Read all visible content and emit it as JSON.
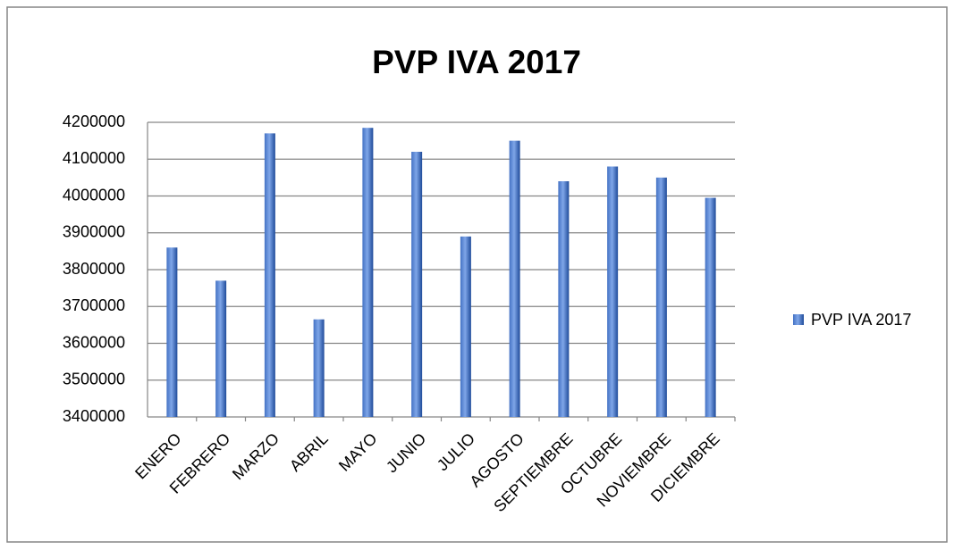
{
  "chart_data": {
    "type": "bar",
    "title": "PVP IVA 2017",
    "categories": [
      "ENERO",
      "FEBRERO",
      "MARZO",
      "ABRIL",
      "MAYO",
      "JUNIO",
      "JULIO",
      "AGOSTO",
      "SEPTIEMBRE",
      "OCTUBRE",
      "NOVIEMBRE",
      "DICIEMBRE"
    ],
    "series": [
      {
        "name": "PVP IVA 2017",
        "color": "#4472c4",
        "values": [
          3860000,
          3770000,
          4170000,
          3665000,
          4185000,
          4120000,
          3890000,
          4150000,
          4040000,
          4080000,
          4050000,
          3995000
        ]
      }
    ],
    "ylim": [
      3400000,
      4200000
    ],
    "yticks": [
      3400000,
      3500000,
      3600000,
      3700000,
      3800000,
      3900000,
      4000000,
      4100000,
      4200000
    ],
    "grid": true,
    "legend": "right"
  }
}
